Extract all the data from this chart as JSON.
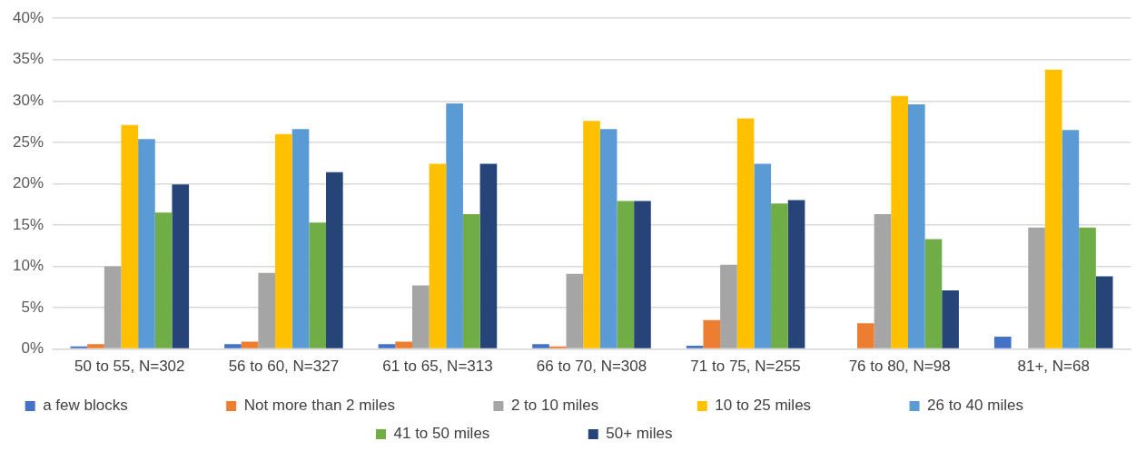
{
  "chart_data": {
    "type": "bar",
    "categories": [
      "50 to 55, N=302",
      "56 to 60, N=327",
      "61 to 65, N=313",
      "66 to 70, N=308",
      "71 to 75, N=255",
      "76 to 80, N=98",
      "81+, N=68"
    ],
    "series": [
      {
        "name": "a few blocks",
        "color": "#4472c4",
        "values": [
          0.3,
          0.6,
          0.6,
          0.6,
          0.4,
          0,
          1.5
        ]
      },
      {
        "name": "Not more than 2 miles",
        "color": "#ed7d31",
        "values": [
          0.6,
          0.9,
          0.9,
          0.3,
          3.5,
          3.1,
          0
        ]
      },
      {
        "name": "2 to 10 miles",
        "color": "#a5a5a5",
        "values": [
          10,
          9.2,
          7.7,
          9.1,
          10.2,
          16.3,
          14.7
        ]
      },
      {
        "name": "10 to 25 miles",
        "color": "#ffc000",
        "values": [
          27.1,
          26,
          22.4,
          27.6,
          27.9,
          30.6,
          33.8
        ]
      },
      {
        "name": "26 to 40 miles",
        "color": "#5b9bd5",
        "values": [
          25.4,
          26.6,
          29.7,
          26.6,
          22.4,
          29.6,
          26.5
        ]
      },
      {
        "name": "41 to 50 miles",
        "color": "#70ad47",
        "values": [
          16.5,
          15.3,
          16.3,
          17.9,
          17.6,
          13.3,
          14.7
        ]
      },
      {
        "name": "50+ miles",
        "color": "#264478",
        "values": [
          19.9,
          21.4,
          22.4,
          17.9,
          18,
          7.1,
          8.8
        ]
      }
    ],
    "ylim": [
      0,
      40
    ],
    "yticks": [
      {
        "value": 0,
        "label": "0%"
      },
      {
        "value": 5,
        "label": "5%"
      },
      {
        "value": 10,
        "label": "10%"
      },
      {
        "value": 15,
        "label": "15%"
      },
      {
        "value": 20,
        "label": "20%"
      },
      {
        "value": 25,
        "label": "25%"
      },
      {
        "value": 30,
        "label": "30%"
      },
      {
        "value": 35,
        "label": "35%"
      },
      {
        "value": 40,
        "label": "40%"
      }
    ],
    "grid": "y",
    "legend": "bottom"
  }
}
